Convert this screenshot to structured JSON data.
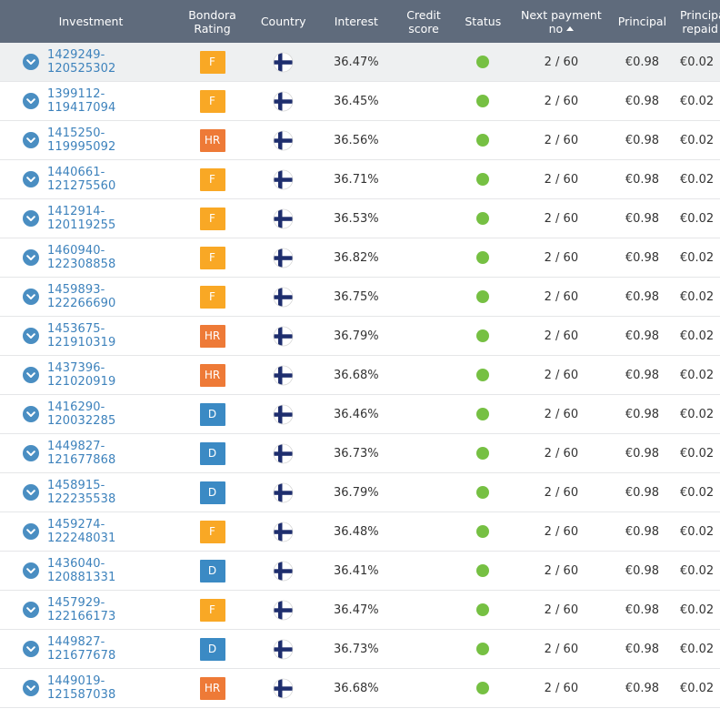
{
  "header": {
    "investment": "Investment",
    "rating": "Bondora\nRating",
    "country": "Country",
    "interest": "Interest",
    "credit_score": "Credit\nscore",
    "status": "Status",
    "next_payment": "Next payment\nno",
    "principal": "Principal",
    "principal_repaid": "Principal\nrepaid"
  },
  "colors": {
    "F": "#f9a825",
    "HR": "#ee7a37",
    "D": "#3b8ac4",
    "status_ok": "#76c043",
    "link": "#3d82bc"
  },
  "rows": [
    {
      "id": "1429249-120525302",
      "rating": "F",
      "interest": "36.47%",
      "credit_score": "",
      "next": "2 / 60",
      "principal": "€0.98",
      "repaid": "€0.02",
      "highlight": true
    },
    {
      "id": "1399112-119417094",
      "rating": "F",
      "interest": "36.45%",
      "credit_score": "",
      "next": "2 / 60",
      "principal": "€0.98",
      "repaid": "€0.02"
    },
    {
      "id": "1415250-119995092",
      "rating": "HR",
      "interest": "36.56%",
      "credit_score": "",
      "next": "2 / 60",
      "principal": "€0.98",
      "repaid": "€0.02"
    },
    {
      "id": "1440661-121275560",
      "rating": "F",
      "interest": "36.71%",
      "credit_score": "",
      "next": "2 / 60",
      "principal": "€0.98",
      "repaid": "€0.02"
    },
    {
      "id": "1412914-120119255",
      "rating": "F",
      "interest": "36.53%",
      "credit_score": "",
      "next": "2 / 60",
      "principal": "€0.98",
      "repaid": "€0.02"
    },
    {
      "id": "1460940-122308858",
      "rating": "F",
      "interest": "36.82%",
      "credit_score": "",
      "next": "2 / 60",
      "principal": "€0.98",
      "repaid": "€0.02"
    },
    {
      "id": "1459893-122266690",
      "rating": "F",
      "interest": "36.75%",
      "credit_score": "",
      "next": "2 / 60",
      "principal": "€0.98",
      "repaid": "€0.02"
    },
    {
      "id": "1453675-121910319",
      "rating": "HR",
      "interest": "36.79%",
      "credit_score": "",
      "next": "2 / 60",
      "principal": "€0.98",
      "repaid": "€0.02"
    },
    {
      "id": "1437396-121020919",
      "rating": "HR",
      "interest": "36.68%",
      "credit_score": "",
      "next": "2 / 60",
      "principal": "€0.98",
      "repaid": "€0.02"
    },
    {
      "id": "1416290-120032285",
      "rating": "D",
      "interest": "36.46%",
      "credit_score": "",
      "next": "2 / 60",
      "principal": "€0.98",
      "repaid": "€0.02"
    },
    {
      "id": "1449827-121677868",
      "rating": "D",
      "interest": "36.73%",
      "credit_score": "",
      "next": "2 / 60",
      "principal": "€0.98",
      "repaid": "€0.02"
    },
    {
      "id": "1458915-122235538",
      "rating": "D",
      "interest": "36.79%",
      "credit_score": "",
      "next": "2 / 60",
      "principal": "€0.98",
      "repaid": "€0.02"
    },
    {
      "id": "1459274-122248031",
      "rating": "F",
      "interest": "36.48%",
      "credit_score": "",
      "next": "2 / 60",
      "principal": "€0.98",
      "repaid": "€0.02"
    },
    {
      "id": "1436040-120881331",
      "rating": "D",
      "interest": "36.41%",
      "credit_score": "",
      "next": "2 / 60",
      "principal": "€0.98",
      "repaid": "€0.02"
    },
    {
      "id": "1457929-122166173",
      "rating": "F",
      "interest": "36.47%",
      "credit_score": "",
      "next": "2 / 60",
      "principal": "€0.98",
      "repaid": "€0.02"
    },
    {
      "id": "1449827-121677678",
      "rating": "D",
      "interest": "36.73%",
      "credit_score": "",
      "next": "2 / 60",
      "principal": "€0.98",
      "repaid": "€0.02"
    },
    {
      "id": "1449019-121587038",
      "rating": "HR",
      "interest": "36.68%",
      "credit_score": "",
      "next": "2 / 60",
      "principal": "€0.98",
      "repaid": "€0.02"
    }
  ],
  "icons": {
    "expand": "chevron-down-icon",
    "country_flag": "finland-flag-icon",
    "status": "status-active-dot-icon",
    "sort": "sort-ascending-icon"
  }
}
